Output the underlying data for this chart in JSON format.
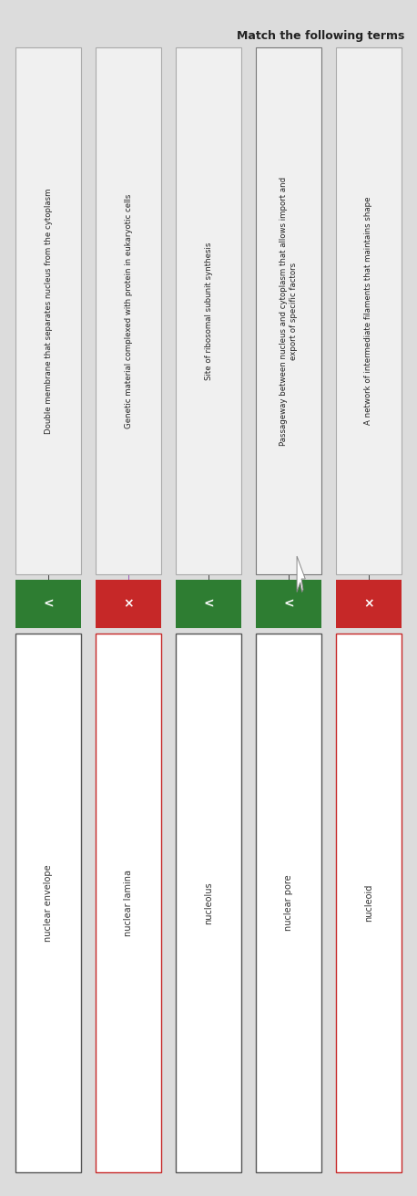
{
  "title": "Match the following terms",
  "background_color": "#dcdcdc",
  "definitions": [
    "Double membrane that separates nucleus from the cytoplasm",
    "Genetic material complexed with protein in eukaryotic cells",
    "Site of ribosomal subunit synthesis",
    "Passageway between nucleus and cytoplasm that allows import and\nexport of specific factors",
    "A network of intermediate filaments that maintains shape"
  ],
  "answers": [
    "nuclear envelope",
    "nuclear lamina",
    "nucleolus",
    "nuclear pore",
    "nucleoid"
  ],
  "button_colors": [
    "#2e7d32",
    "#c62828",
    "#2e7d32",
    "#2e7d32",
    "#c62828"
  ],
  "button_symbols": [
    "<",
    "×",
    "<",
    "<",
    "×"
  ],
  "answer_border_colors": [
    "#555555",
    "#c62828",
    "#555555",
    "#555555",
    "#c62828"
  ],
  "def_box_border_colors": [
    "#aaaaaa",
    "#aaaaaa",
    "#aaaaaa",
    "#777777",
    "#aaaaaa"
  ],
  "line_colors": [
    "#444444",
    "#9b59b6",
    "#444444",
    "#444444",
    "#444444"
  ],
  "figsize": [
    4.58,
    13.12
  ],
  "dpi": 100
}
